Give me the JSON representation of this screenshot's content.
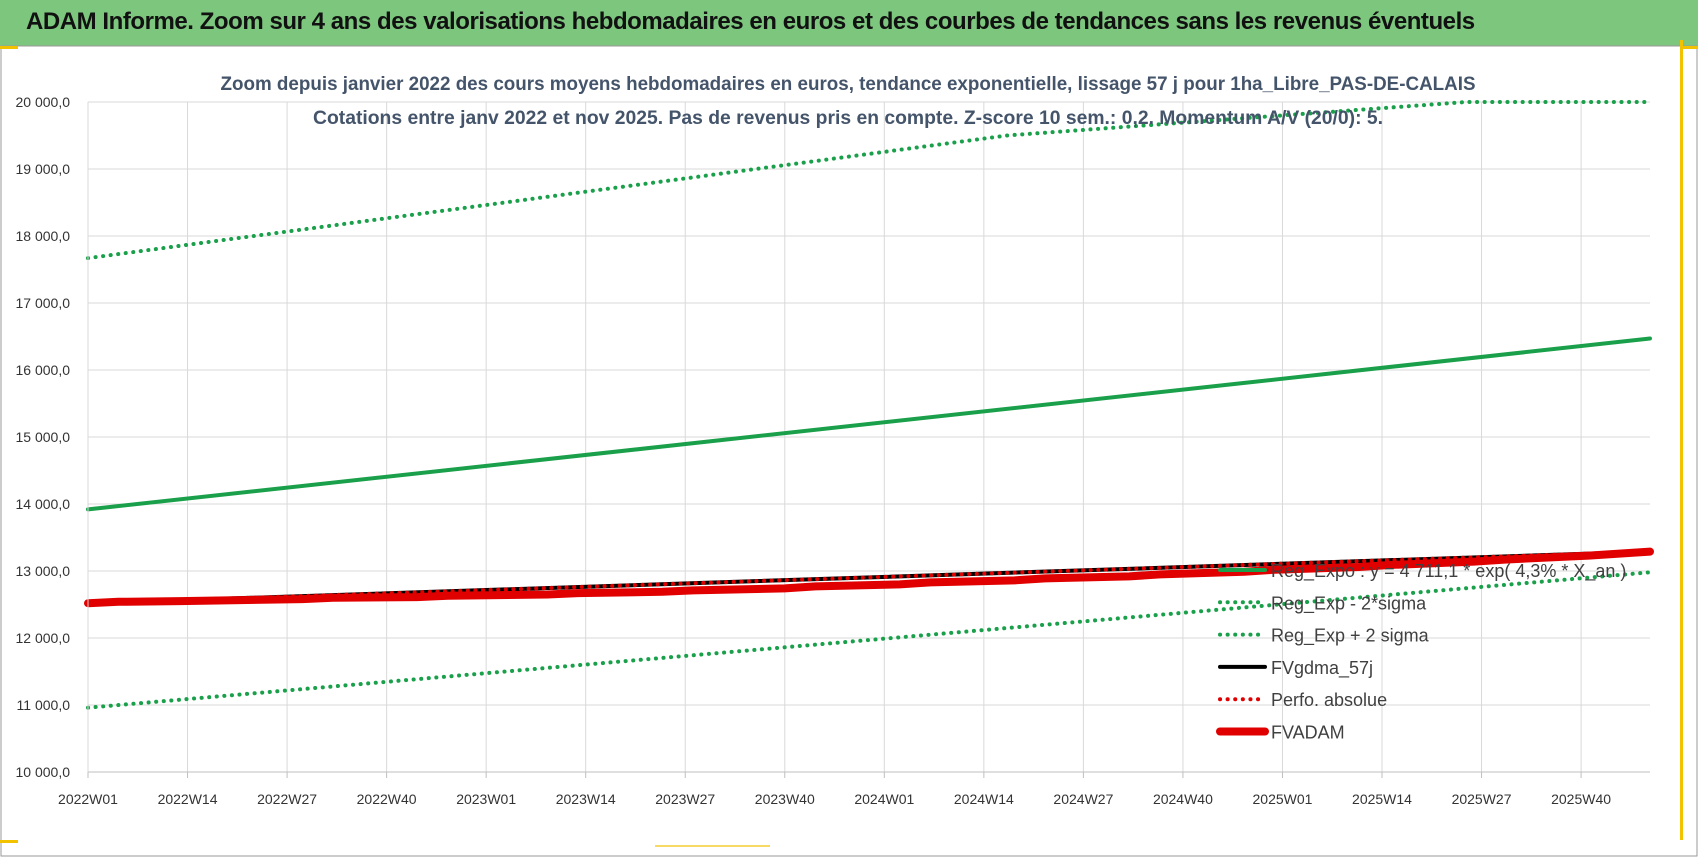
{
  "banner": {
    "title": "ADAM Informe. Zoom sur 4 ans des valorisations hebdomadaires en euros et des courbes de tendances sans les revenus éventuels",
    "color": "#7dc67e"
  },
  "chart_data": {
    "type": "line",
    "title": "Zoom depuis janvier 2022 des cours moyens hebdomadaires en euros, tendance exponentielle, lissage 57 j pour 1ha_Libre_PAS-DE-CALAIS",
    "subtitle": "Cotations entre janv 2022 et nov 2025. Pas de revenus pris en compte. Z-score 10 sem.: 0,2. Momentum A/V (20/0): 5.",
    "xlabel": "",
    "ylabel": "",
    "ylim": [
      10000,
      20000
    ],
    "yticks": [
      "20 000,0",
      "19 000,0",
      "18 000,0",
      "17 000,0",
      "16 000,0",
      "15 000,0",
      "14 000,0",
      "13 000,0",
      "12 000,0",
      "11 000,0",
      "10 000,0"
    ],
    "xticks": [
      "2022W01",
      "2022W14",
      "2022W27",
      "2022W40",
      "2023W01",
      "2023W14",
      "2023W27",
      "2023W40",
      "2024W01",
      "2024W14",
      "2024W27",
      "2024W40",
      "2025W01",
      "2025W14",
      "2025W27",
      "2025W40"
    ],
    "x_range_weeks": [
      0,
      204
    ],
    "grid": true,
    "legend_position": "right",
    "series": [
      {
        "name": "Reg_Expo : y = 4 711,1 * exp( 4,3% * X_an )",
        "style": "solid",
        "color": "#1aa04a",
        "x": [
          0,
          204
        ],
        "y": [
          13920,
          16470
        ]
      },
      {
        "name": "Reg_Exp - 2*sigma",
        "style": "dotted",
        "color": "#1aa04a",
        "x": [
          0,
          204
        ],
        "y": [
          10960,
          12980
        ]
      },
      {
        "name": "Reg_Exp + 2 sigma",
        "style": "dotted",
        "color": "#1aa04a",
        "x": [
          0,
          120,
          180,
          204
        ],
        "y": [
          17670,
          19500,
          20000,
          20000
        ]
      },
      {
        "name": "FVgdma_57j",
        "style": "solid",
        "color": "#000000",
        "x": [
          0,
          204
        ],
        "y": [
          12520,
          13290
        ]
      },
      {
        "name": "Perfo. absolue",
        "style": "dotted",
        "color": "#e00000",
        "x": [
          0,
          204
        ],
        "y": [
          12520,
          13290
        ]
      },
      {
        "name": "FVADAM",
        "style": "thick",
        "color": "#e00000",
        "x": [
          0,
          4,
          12,
          17,
          28,
          32,
          43,
          47,
          60,
          64,
          75,
          79,
          91,
          95,
          106,
          110,
          121,
          125,
          136,
          140,
          151,
          155,
          166,
          170,
          181,
          185,
          196,
          204
        ],
        "y": [
          12520,
          12540,
          12550,
          12560,
          12580,
          12600,
          12610,
          12630,
          12650,
          12670,
          12690,
          12710,
          12740,
          12770,
          12800,
          12830,
          12860,
          12890,
          12920,
          12950,
          12990,
          13020,
          13060,
          13090,
          13140,
          13170,
          13230,
          13290
        ]
      }
    ]
  }
}
